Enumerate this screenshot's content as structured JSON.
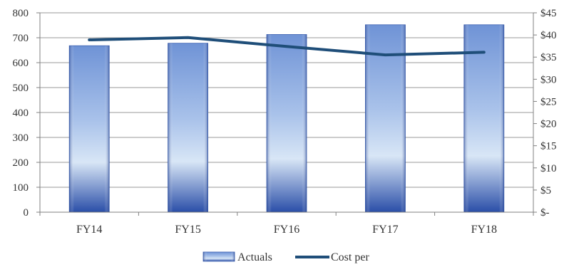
{
  "chart_data": {
    "type": "bar",
    "categories": [
      "FY14",
      "FY15",
      "FY16",
      "FY17",
      "FY18"
    ],
    "series": [
      {
        "name": "Actuals",
        "type": "bar",
        "axis": "left",
        "values": [
          668,
          678,
          713,
          752,
          752
        ],
        "color": "#5a7fc9"
      },
      {
        "name": "Cost per",
        "type": "line",
        "axis": "right",
        "values": [
          38.9,
          39.4,
          37.4,
          35.5,
          36.1
        ],
        "color": "#1f4e79"
      }
    ],
    "y_left": {
      "ylim": [
        0,
        800
      ],
      "ticks": [
        0,
        100,
        200,
        300,
        400,
        500,
        600,
        700,
        800
      ],
      "tick_labels": [
        "0",
        "100",
        "200",
        "300",
        "400",
        "500",
        "600",
        "700",
        "800"
      ]
    },
    "y_right": {
      "ylim": [
        0,
        45
      ],
      "ticks": [
        0,
        5,
        10,
        15,
        20,
        25,
        30,
        35,
        40,
        45
      ],
      "tick_labels": [
        "$-",
        "$5",
        "$10",
        "$15",
        "$20",
        "$25",
        "$30",
        "$35",
        "$40",
        "$45"
      ]
    },
    "title": "",
    "xlabel": "",
    "ylabel": "",
    "grid": true,
    "legend": "bottom-center"
  },
  "colors": {
    "grid": "#999999",
    "axis": "#808080",
    "bar_dark": "#2a4ea8",
    "bar_mid": "#6f93d6",
    "bar_light": "#d8e6f6",
    "line": "#1f4e79"
  }
}
